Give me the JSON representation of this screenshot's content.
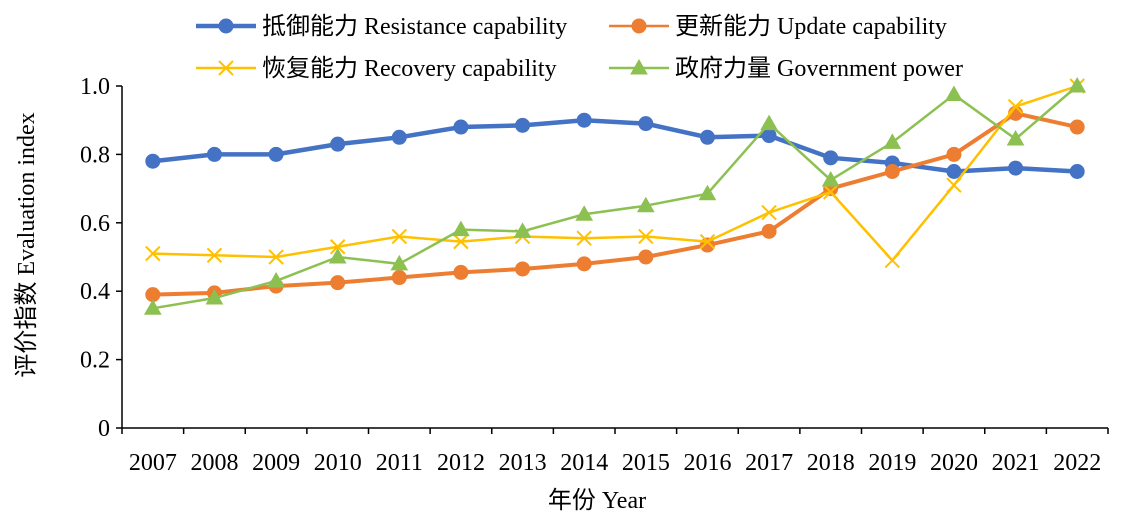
{
  "chart_data": {
    "type": "line",
    "xlabel": "年份 Year",
    "ylabel": "评价指数 Evaluation index",
    "ylim": [
      0,
      1.0
    ],
    "yticks": [
      "0",
      "0.2",
      "0.4",
      "0.6",
      "0.8",
      "1.0"
    ],
    "grid": false,
    "legend_position": "top",
    "categories": [
      "2007",
      "2008",
      "2009",
      "2010",
      "2011",
      "2012",
      "2013",
      "2014",
      "2015",
      "2016",
      "2017",
      "2018",
      "2019",
      "2020",
      "2021",
      "2022"
    ],
    "series": [
      {
        "name": "抵御能力 Resistance capability",
        "color": "#4472C4",
        "marker": "circle",
        "values": [
          0.78,
          0.8,
          0.8,
          0.83,
          0.85,
          0.88,
          0.885,
          0.9,
          0.89,
          0.85,
          0.855,
          0.79,
          0.775,
          0.75,
          0.76,
          0.75
        ]
      },
      {
        "name": "更新能力 Update capability",
        "color": "#ED7D31",
        "marker": "circle",
        "values": [
          0.39,
          0.395,
          0.415,
          0.425,
          0.44,
          0.455,
          0.465,
          0.48,
          0.5,
          0.535,
          0.575,
          0.7,
          0.75,
          0.8,
          0.92,
          0.88
        ]
      },
      {
        "name": "恢复能力 Recovery capability",
        "color": "#FFC000",
        "marker": "x",
        "values": [
          0.51,
          0.505,
          0.5,
          0.53,
          0.56,
          0.545,
          0.56,
          0.555,
          0.56,
          0.545,
          0.63,
          0.69,
          0.49,
          0.71,
          0.94,
          1.0
        ]
      },
      {
        "name": "政府力量 Government power",
        "color": "#8CC152",
        "marker": "triangle",
        "values": [
          0.35,
          0.38,
          0.43,
          0.5,
          0.48,
          0.58,
          0.575,
          0.625,
          0.65,
          0.685,
          0.89,
          0.725,
          0.835,
          0.975,
          0.845,
          1.0
        ]
      }
    ]
  }
}
